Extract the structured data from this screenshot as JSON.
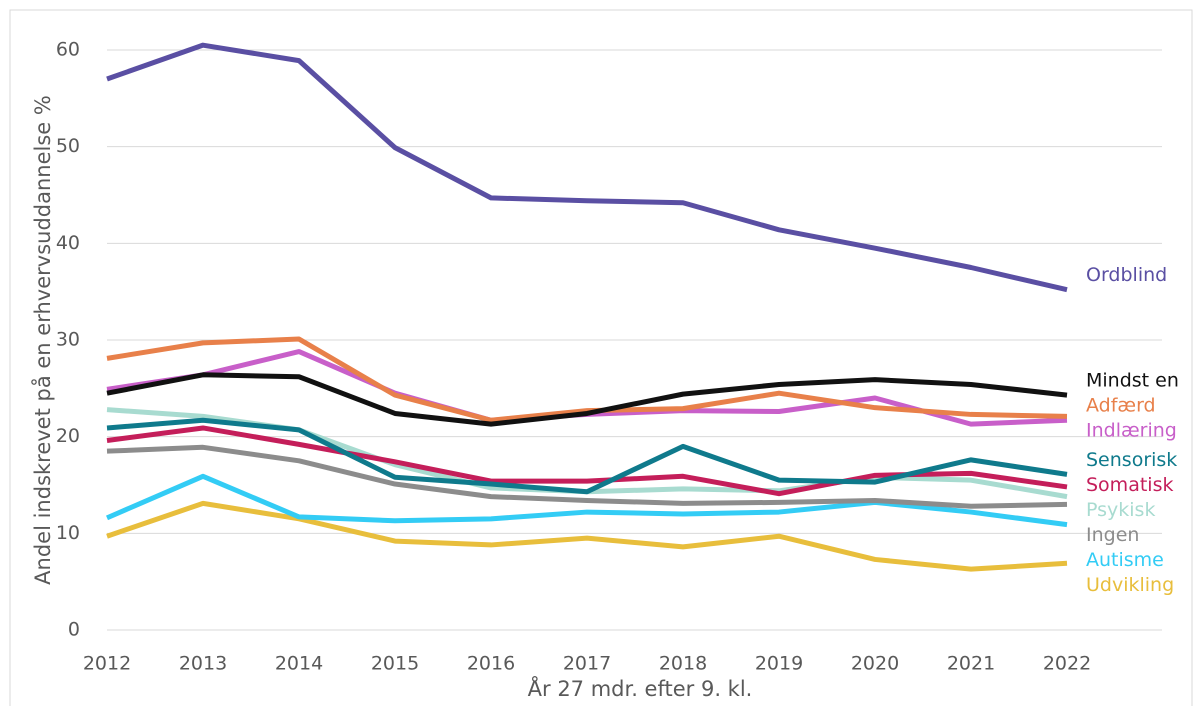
{
  "chart_data": {
    "type": "line",
    "x_label": "År 27 mdr. efter 9. kl.",
    "y_label": "Andel indskrevet på en erhvervsuddannelse %",
    "x": [
      2012,
      2013,
      2014,
      2015,
      2016,
      2017,
      2018,
      2019,
      2020,
      2021,
      2022
    ],
    "xlim": [
      2012,
      2022
    ],
    "ylim": [
      0,
      60
    ],
    "yticks": [
      0,
      10,
      20,
      30,
      40,
      50,
      60
    ],
    "grid": true,
    "series": [
      {
        "name": "Ordblind",
        "color": "#5a4fa3",
        "values": [
          57.0,
          60.5,
          58.9,
          49.9,
          44.7,
          44.4,
          44.2,
          41.4,
          39.5,
          37.5,
          35.2
        ]
      },
      {
        "name": "Udvikling",
        "color": "#e8be3c",
        "values": [
          9.7,
          13.1,
          11.5,
          9.2,
          8.8,
          9.5,
          8.6,
          9.7,
          7.3,
          6.3,
          6.9
        ]
      },
      {
        "name": "Autisme",
        "color": "#33ccf5",
        "values": [
          11.6,
          15.9,
          11.7,
          11.3,
          11.5,
          12.2,
          12.0,
          12.2,
          13.2,
          12.2,
          10.9
        ]
      },
      {
        "name": "Ingen",
        "color": "#8c8c8c",
        "values": [
          18.5,
          18.9,
          17.5,
          15.1,
          13.8,
          13.4,
          13.1,
          13.2,
          13.4,
          12.8,
          13.0
        ]
      },
      {
        "name": "Psykisk",
        "color": "#a8dbd0",
        "values": [
          22.8,
          22.1,
          20.7,
          17.1,
          14.7,
          14.3,
          14.6,
          14.4,
          15.8,
          15.5,
          13.8
        ]
      },
      {
        "name": "Somatisk",
        "color": "#c41e5a",
        "values": [
          19.6,
          20.9,
          19.2,
          17.4,
          15.4,
          15.4,
          15.9,
          14.1,
          16.0,
          16.2,
          14.8
        ]
      },
      {
        "name": "Sensorisk",
        "color": "#0f7a8c",
        "values": [
          20.9,
          21.7,
          20.7,
          15.8,
          15.1,
          14.3,
          19.0,
          15.5,
          15.3,
          17.6,
          16.1
        ]
      },
      {
        "name": "Indlæring",
        "color": "#c85fc9",
        "values": [
          24.9,
          26.4,
          28.8,
          24.5,
          21.7,
          22.3,
          22.7,
          22.6,
          24.0,
          21.3,
          21.7
        ]
      },
      {
        "name": "Adfærd",
        "color": "#e8804a",
        "values": [
          28.1,
          29.7,
          30.1,
          24.3,
          21.7,
          22.7,
          22.9,
          24.5,
          23.0,
          22.3,
          22.1
        ]
      },
      {
        "name": "Mindst en",
        "color": "#111111",
        "values": [
          24.5,
          26.4,
          26.2,
          22.4,
          21.3,
          22.4,
          24.4,
          25.4,
          25.9,
          25.4,
          24.3
        ]
      }
    ]
  }
}
